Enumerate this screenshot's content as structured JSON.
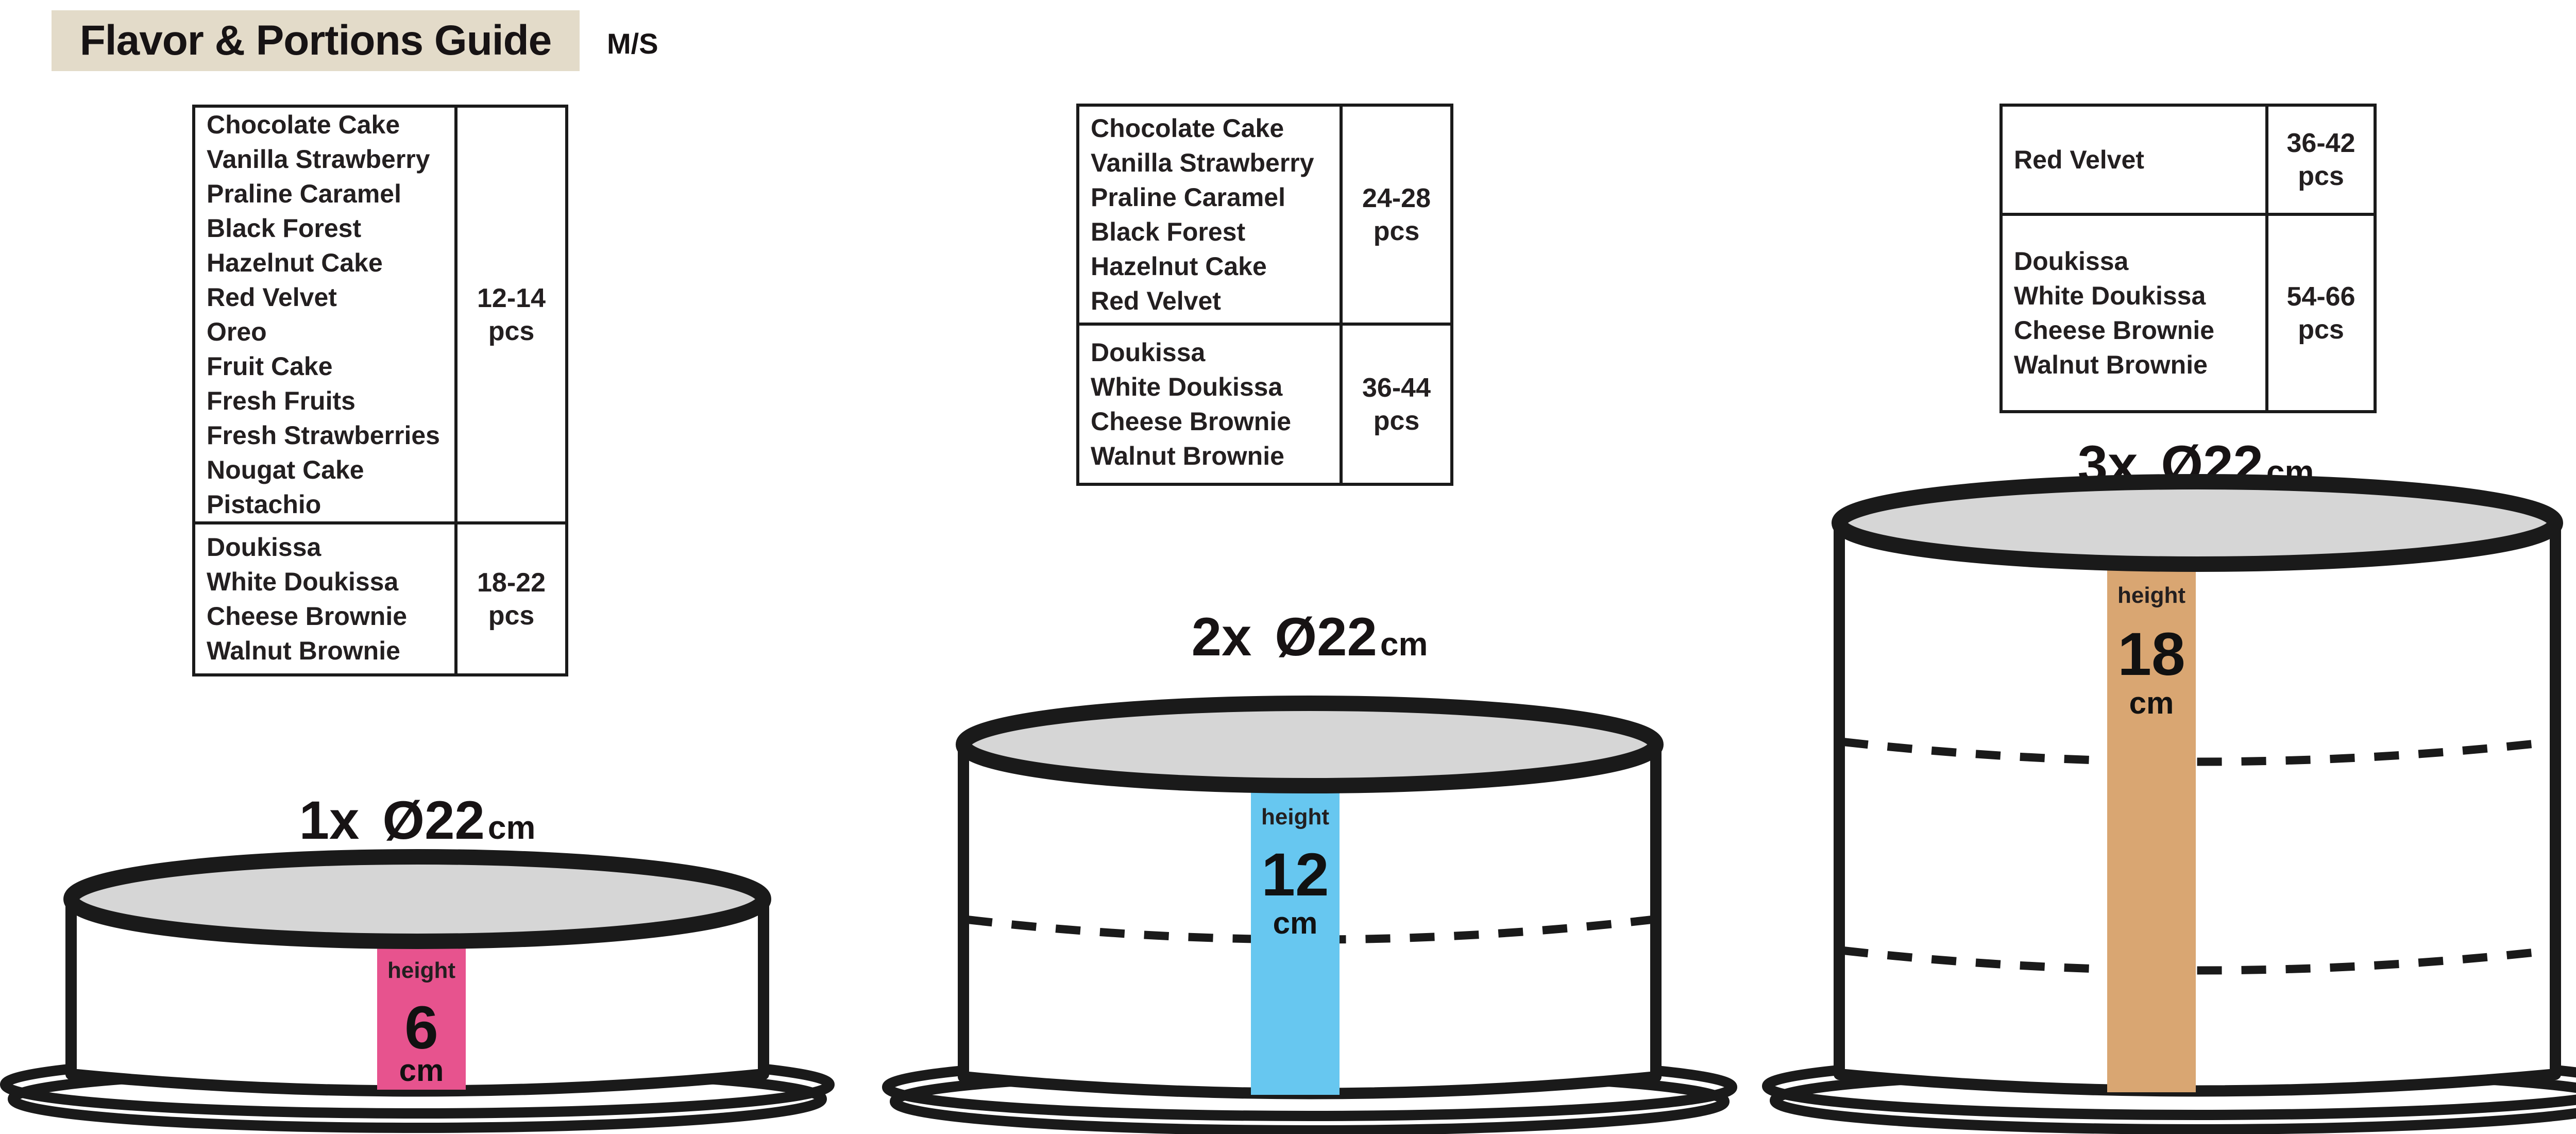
{
  "title": "Flavor & Portions Guide",
  "brand": "M/S",
  "tables": [
    {
      "name": "size-1-flavor-table",
      "rows": [
        {
          "flavors": [
            "Chocolate Cake",
            "Vanilla Strawberry",
            "Praline Caramel",
            "Black Forest",
            "Hazelnut Cake",
            "Red Velvet",
            "Oreo",
            "Fruit Cake",
            "Fresh Fruits",
            "Fresh Strawberries",
            "Nougat Cake",
            "Pistachio"
          ],
          "portions_range": "12-14",
          "portions_unit": "pcs"
        },
        {
          "flavors": [
            "Doukissa",
            "White Doukissa",
            "Cheese Brownie",
            "Walnut Brownie"
          ],
          "portions_range": "18-22",
          "portions_unit": "pcs"
        }
      ]
    },
    {
      "name": "size-2-flavor-table",
      "rows": [
        {
          "flavors": [
            "Chocolate Cake",
            "Vanilla Strawberry",
            "Praline Caramel",
            "Black Forest",
            "Hazelnut Cake",
            "Red Velvet"
          ],
          "portions_range": "24-28",
          "portions_unit": "pcs"
        },
        {
          "flavors": [
            "Doukissa",
            "White Doukissa",
            "Cheese Brownie",
            "Walnut Brownie"
          ],
          "portions_range": "36-44",
          "portions_unit": "pcs"
        }
      ]
    },
    {
      "name": "size-3-flavor-table",
      "rows": [
        {
          "flavors": [
            "Red Velvet"
          ],
          "portions_range": "36-42",
          "portions_unit": "pcs"
        },
        {
          "flavors": [
            "Doukissa",
            "White Doukissa",
            "Cheese Brownie",
            "Walnut Brownie"
          ],
          "portions_range": "54-66",
          "portions_unit": "pcs"
        }
      ]
    }
  ],
  "cakes": [
    {
      "count": "1x",
      "diameter": "Ø22",
      "diameter_unit": "cm",
      "height_word": "height",
      "height_value": "6",
      "height_unit": "cm",
      "layers": 1,
      "stripe_color": "#e7538e",
      "top_color": "#d6d6d6"
    },
    {
      "count": "2x",
      "diameter": "Ø22",
      "diameter_unit": "cm",
      "height_word": "height",
      "height_value": "12",
      "height_unit": "cm",
      "layers": 2,
      "stripe_color": "#67c7f0",
      "top_color": "#d6d6d6"
    },
    {
      "count": "3x",
      "diameter": "Ø22",
      "diameter_unit": "cm",
      "height_word": "height",
      "height_value": "18",
      "height_unit": "cm",
      "layers": 3,
      "stripe_color": "#d9a672",
      "top_color": "#d6d6d6"
    }
  ],
  "colors": {
    "title_bg": "#e3dbc9",
    "ink": "#231f20",
    "outline": "#1a1a1a"
  }
}
